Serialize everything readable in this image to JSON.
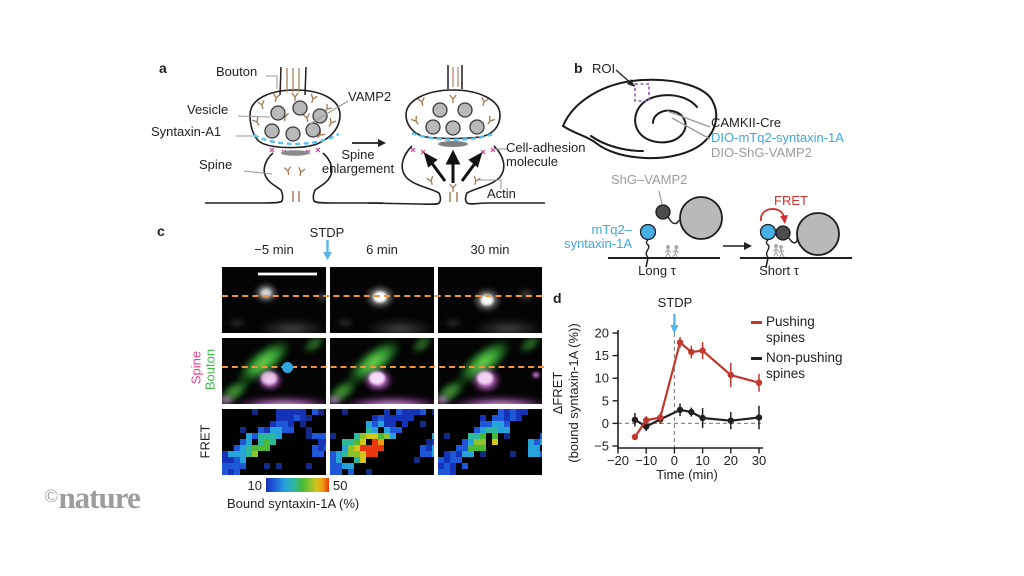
{
  "figure": {
    "panel_a_label": "a",
    "panel_b_label": "b",
    "panel_c_label": "c",
    "panel_d_label": "d"
  },
  "panel_a": {
    "bouton": "Bouton",
    "vesicle": "Vesicle",
    "syntaxin": "Syntaxin-A1",
    "spine": "Spine",
    "vamp2": "VAMP2",
    "spine_enlargement_line1": "Spine",
    "spine_enlargement_line2": "enlargement",
    "cell_adhesion_line1": "Cell-adhesion",
    "cell_adhesion_line2": "molecule",
    "actin": "Actin"
  },
  "panel_b": {
    "roi": "ROI",
    "construct_1": "CAMKII-Cre",
    "construct_2": "DIO-mTq2-syntaxin-1A",
    "construct_3": "DIO-ShG-VAMP2",
    "shg_vamp2": "ShG–VAMP2",
    "mtq2_line1": "mTq2–",
    "mtq2_line2": "syntaxin-1A",
    "fret": "FRET",
    "long_tau": "Long τ",
    "short_tau": "Short τ"
  },
  "panel_c": {
    "stdp": "STDP",
    "timepoint_1": "−5 min",
    "timepoint_2": "6 min",
    "timepoint_3": "30 min",
    "row_label_spine": "Spine",
    "row_label_bouton": "Bouton",
    "row_label_fret": "FRET",
    "colorbar_min": "10",
    "colorbar_max": "50",
    "colorbar_caption": "Bound syntaxin-1A (%)"
  },
  "panel_d": {
    "stdp": "STDP",
    "xlabel": "Time (min)",
    "ylabel_line1": "ΔFRET",
    "ylabel_line2": "(bound syntaxin-1A (%))",
    "legend": [
      {
        "line1": "Pushing",
        "line2": "spines",
        "color": "#c0392f"
      },
      {
        "line1": "Non-pushing",
        "line2": "spines",
        "color": "#231f20"
      }
    ]
  },
  "watermark": {
    "symbol": "©",
    "name": "nature"
  },
  "colors": {
    "stdp_arrow": "#56b4e9",
    "dio_blue": "#3da8dc",
    "gray_label": "#9b9b9b",
    "fret_red": "#d0312d",
    "spine_magenta": "#e8418c",
    "bouton_green": "#3db548",
    "dashed_orange": "#f0953c",
    "roi_purple": "#9b59b6"
  },
  "chart_data": {
    "type": "line",
    "title": "",
    "xlabel": "Time (min)",
    "ylabel": "ΔFRET (bound syntaxin-1A (%))",
    "xlim": [
      -20,
      30
    ],
    "ylim": [
      -5,
      20
    ],
    "x_ticks": [
      -20,
      -10,
      0,
      10,
      20,
      30
    ],
    "y_ticks": [
      -5,
      0,
      5,
      10,
      15,
      20
    ],
    "grid": false,
    "legend_position": "right",
    "annotation": {
      "label": "STDP",
      "x": 0
    },
    "series": [
      {
        "name": "Pushing spines",
        "color": "#c0392f",
        "x": [
          -14,
          -10,
          -5,
          2,
          6,
          10,
          20,
          30
        ],
        "y": [
          -3,
          0.7,
          1.3,
          17.9,
          15.8,
          16.1,
          10.7,
          9
        ],
        "err": [
          0.7,
          0.9,
          1.1,
          1.2,
          1.4,
          1.9,
          2.7,
          2.0
        ]
      },
      {
        "name": "Non-pushing spines",
        "color": "#231f20",
        "x": [
          -14,
          -10,
          -5,
          2,
          6,
          10,
          20,
          30
        ],
        "y": [
          0.8,
          -0.7,
          0.9,
          3.0,
          2.5,
          1.2,
          0.6,
          1.3
        ],
        "err": [
          1.5,
          1.0,
          1.0,
          1.4,
          1.0,
          2.2,
          1.9,
          2.6
        ]
      }
    ]
  }
}
